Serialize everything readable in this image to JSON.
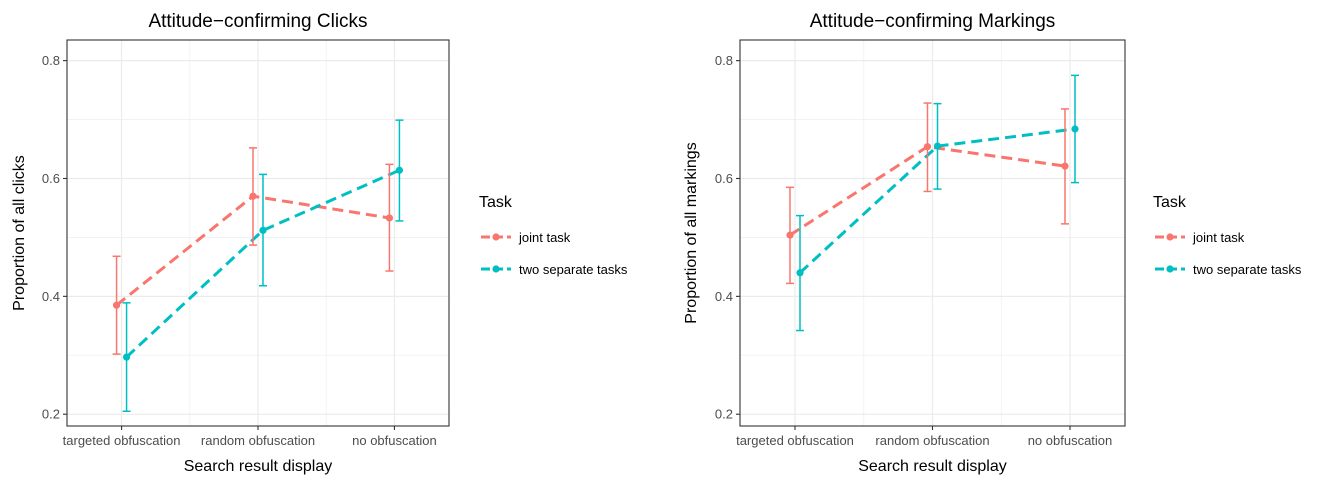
{
  "chart_data": [
    {
      "type": "line",
      "title": "Attitude−confirming Clicks",
      "xlabel": "Search result display",
      "ylabel": "Proportion of all clicks",
      "categories": [
        "targeted obfuscation",
        "random obfuscation",
        "no obfuscation"
      ],
      "ylim": [
        0.18,
        0.835
      ],
      "yticks": [
        "0.2",
        "0.4",
        "0.6",
        "0.8"
      ],
      "grid": true,
      "legend": {
        "title": "Task",
        "position": "right"
      },
      "series": [
        {
          "name": "joint task",
          "color": "#F8766D",
          "values": [
            0.385,
            0.57,
            0.533
          ],
          "lower": [
            0.302,
            0.487,
            0.443
          ],
          "upper": [
            0.468,
            0.652,
            0.624
          ]
        },
        {
          "name": "two separate tasks",
          "color": "#00BFC4",
          "values": [
            0.297,
            0.512,
            0.614
          ],
          "lower": [
            0.205,
            0.418,
            0.528
          ],
          "upper": [
            0.389,
            0.607,
            0.699
          ]
        }
      ]
    },
    {
      "type": "line",
      "title": "Attitude−confirming Markings",
      "xlabel": "Search result display",
      "ylabel": "Proportion of all markings",
      "categories": [
        "targeted obfuscation",
        "random obfuscation",
        "no obfuscation"
      ],
      "ylim": [
        0.18,
        0.835
      ],
      "yticks": [
        "0.2",
        "0.4",
        "0.6",
        "0.8"
      ],
      "grid": true,
      "legend": {
        "title": "Task",
        "position": "right"
      },
      "series": [
        {
          "name": "joint task",
          "color": "#F8766D",
          "values": [
            0.504,
            0.654,
            0.621
          ],
          "lower": [
            0.422,
            0.578,
            0.523
          ],
          "upper": [
            0.585,
            0.728,
            0.718
          ]
        },
        {
          "name": "two separate tasks",
          "color": "#00BFC4",
          "values": [
            0.44,
            0.655,
            0.684
          ],
          "lower": [
            0.342,
            0.582,
            0.593
          ],
          "upper": [
            0.537,
            0.727,
            0.775
          ]
        }
      ]
    }
  ]
}
